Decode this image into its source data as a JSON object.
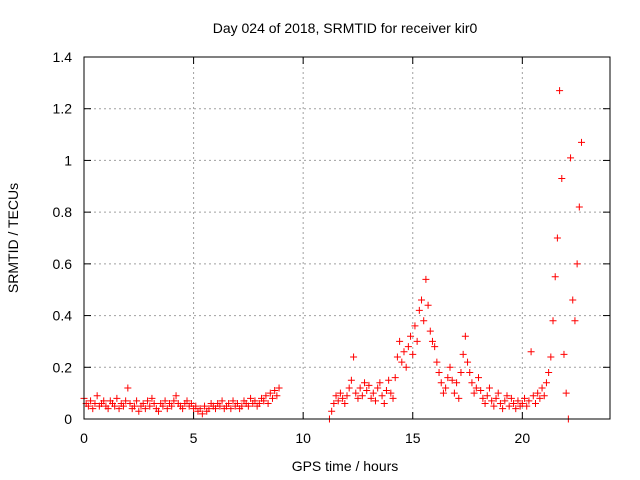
{
  "chart_data": {
    "type": "scatter",
    "title": "Day 024 of 2018, SRMTID for receiver kir0",
    "xlabel": "GPS time / hours",
    "ylabel": "SRMTID / TECUs",
    "xlim": [
      0,
      24
    ],
    "ylim": [
      0,
      1.4
    ],
    "xticks": [
      0,
      5,
      10,
      15,
      20
    ],
    "xtick_labels": [
      "0",
      "5",
      "10",
      "15",
      "20"
    ],
    "yticks": [
      0,
      0.2,
      0.4,
      0.6,
      0.8,
      1.0,
      1.2,
      1.4
    ],
    "ytick_labels": [
      "0",
      "0.2",
      "0.4",
      "0.6",
      "0.8",
      "1",
      "1.2",
      "1.4"
    ],
    "grid": true,
    "marker": "+",
    "color": "#ff0000",
    "series": [
      {
        "name": "kir0",
        "points": [
          [
            0.0,
            0.08
          ],
          [
            0.1,
            0.06
          ],
          [
            0.2,
            0.05
          ],
          [
            0.3,
            0.07
          ],
          [
            0.4,
            0.04
          ],
          [
            0.5,
            0.06
          ],
          [
            0.6,
            0.09
          ],
          [
            0.7,
            0.05
          ],
          [
            0.8,
            0.06
          ],
          [
            0.9,
            0.07
          ],
          [
            1.0,
            0.05
          ],
          [
            1.1,
            0.04
          ],
          [
            1.2,
            0.07
          ],
          [
            1.3,
            0.06
          ],
          [
            1.4,
            0.05
          ],
          [
            1.5,
            0.08
          ],
          [
            1.6,
            0.04
          ],
          [
            1.7,
            0.06
          ],
          [
            1.8,
            0.05
          ],
          [
            1.9,
            0.07
          ],
          [
            2.0,
            0.12
          ],
          [
            2.1,
            0.06
          ],
          [
            2.2,
            0.04
          ],
          [
            2.3,
            0.05
          ],
          [
            2.4,
            0.07
          ],
          [
            2.5,
            0.03
          ],
          [
            2.6,
            0.05
          ],
          [
            2.7,
            0.06
          ],
          [
            2.8,
            0.04
          ],
          [
            2.9,
            0.07
          ],
          [
            3.0,
            0.05
          ],
          [
            3.1,
            0.08
          ],
          [
            3.2,
            0.06
          ],
          [
            3.3,
            0.04
          ],
          [
            3.4,
            0.03
          ],
          [
            3.5,
            0.06
          ],
          [
            3.6,
            0.05
          ],
          [
            3.7,
            0.07
          ],
          [
            3.8,
            0.04
          ],
          [
            3.9,
            0.06
          ],
          [
            4.0,
            0.05
          ],
          [
            4.1,
            0.07
          ],
          [
            4.2,
            0.09
          ],
          [
            4.3,
            0.06
          ],
          [
            4.4,
            0.05
          ],
          [
            4.5,
            0.04
          ],
          [
            4.6,
            0.06
          ],
          [
            4.7,
            0.07
          ],
          [
            4.8,
            0.05
          ],
          [
            4.9,
            0.06
          ],
          [
            5.0,
            0.04
          ],
          [
            5.1,
            0.05
          ],
          [
            5.2,
            0.03
          ],
          [
            5.3,
            0.04
          ],
          [
            5.4,
            0.02
          ],
          [
            5.5,
            0.05
          ],
          [
            5.6,
            0.03
          ],
          [
            5.7,
            0.04
          ],
          [
            5.8,
            0.06
          ],
          [
            5.9,
            0.05
          ],
          [
            6.0,
            0.04
          ],
          [
            6.1,
            0.06
          ],
          [
            6.2,
            0.05
          ],
          [
            6.3,
            0.07
          ],
          [
            6.4,
            0.04
          ],
          [
            6.5,
            0.05
          ],
          [
            6.6,
            0.06
          ],
          [
            6.7,
            0.04
          ],
          [
            6.8,
            0.07
          ],
          [
            6.9,
            0.05
          ],
          [
            7.0,
            0.06
          ],
          [
            7.1,
            0.04
          ],
          [
            7.2,
            0.05
          ],
          [
            7.3,
            0.07
          ],
          [
            7.4,
            0.06
          ],
          [
            7.5,
            0.05
          ],
          [
            7.6,
            0.08
          ],
          [
            7.7,
            0.06
          ],
          [
            7.8,
            0.07
          ],
          [
            7.9,
            0.05
          ],
          [
            8.0,
            0.06
          ],
          [
            8.1,
            0.08
          ],
          [
            8.2,
            0.07
          ],
          [
            8.3,
            0.09
          ],
          [
            8.4,
            0.06
          ],
          [
            8.5,
            0.1
          ],
          [
            8.6,
            0.08
          ],
          [
            8.7,
            0.11
          ],
          [
            8.8,
            0.09
          ],
          [
            8.9,
            0.12
          ],
          [
            11.2,
            0.0
          ],
          [
            11.3,
            0.03
          ],
          [
            11.4,
            0.06
          ],
          [
            11.5,
            0.09
          ],
          [
            11.6,
            0.07
          ],
          [
            11.7,
            0.1
          ],
          [
            11.8,
            0.08
          ],
          [
            11.9,
            0.06
          ],
          [
            12.0,
            0.09
          ],
          [
            12.1,
            0.12
          ],
          [
            12.2,
            0.15
          ],
          [
            12.3,
            0.24
          ],
          [
            12.4,
            0.1
          ],
          [
            12.5,
            0.08
          ],
          [
            12.6,
            0.12
          ],
          [
            12.7,
            0.09
          ],
          [
            12.8,
            0.14
          ],
          [
            12.9,
            0.11
          ],
          [
            13.0,
            0.13
          ],
          [
            13.1,
            0.08
          ],
          [
            13.2,
            0.1
          ],
          [
            13.3,
            0.07
          ],
          [
            13.4,
            0.12
          ],
          [
            13.5,
            0.14
          ],
          [
            13.6,
            0.09
          ],
          [
            13.7,
            0.06
          ],
          [
            13.8,
            0.11
          ],
          [
            13.9,
            0.15
          ],
          [
            14.0,
            0.1
          ],
          [
            14.1,
            0.08
          ],
          [
            14.2,
            0.16
          ],
          [
            14.3,
            0.24
          ],
          [
            14.4,
            0.3
          ],
          [
            14.5,
            0.22
          ],
          [
            14.6,
            0.26
          ],
          [
            14.7,
            0.2
          ],
          [
            14.8,
            0.28
          ],
          [
            14.9,
            0.32
          ],
          [
            15.0,
            0.25
          ],
          [
            15.1,
            0.36
          ],
          [
            15.2,
            0.3
          ],
          [
            15.3,
            0.42
          ],
          [
            15.4,
            0.46
          ],
          [
            15.5,
            0.38
          ],
          [
            15.6,
            0.54
          ],
          [
            15.7,
            0.44
          ],
          [
            15.8,
            0.34
          ],
          [
            15.9,
            0.3
          ],
          [
            16.0,
            0.28
          ],
          [
            16.1,
            0.22
          ],
          [
            16.2,
            0.18
          ],
          [
            16.3,
            0.14
          ],
          [
            16.4,
            0.1
          ],
          [
            16.5,
            0.12
          ],
          [
            16.6,
            0.16
          ],
          [
            16.7,
            0.2
          ],
          [
            16.8,
            0.15
          ],
          [
            16.9,
            0.1
          ],
          [
            17.0,
            0.14
          ],
          [
            17.1,
            0.08
          ],
          [
            17.2,
            0.18
          ],
          [
            17.3,
            0.25
          ],
          [
            17.4,
            0.32
          ],
          [
            17.5,
            0.22
          ],
          [
            17.6,
            0.18
          ],
          [
            17.7,
            0.14
          ],
          [
            17.8,
            0.1
          ],
          [
            17.9,
            0.12
          ],
          [
            18.0,
            0.16
          ],
          [
            18.1,
            0.11
          ],
          [
            18.2,
            0.08
          ],
          [
            18.3,
            0.06
          ],
          [
            18.4,
            0.09
          ],
          [
            18.5,
            0.12
          ],
          [
            18.6,
            0.07
          ],
          [
            18.7,
            0.05
          ],
          [
            18.8,
            0.08
          ],
          [
            18.9,
            0.1
          ],
          [
            19.0,
            0.06
          ],
          [
            19.1,
            0.04
          ],
          [
            19.2,
            0.07
          ],
          [
            19.3,
            0.09
          ],
          [
            19.4,
            0.05
          ],
          [
            19.5,
            0.08
          ],
          [
            19.6,
            0.06
          ],
          [
            19.7,
            0.04
          ],
          [
            19.8,
            0.07
          ],
          [
            19.9,
            0.05
          ],
          [
            20.0,
            0.06
          ],
          [
            20.1,
            0.08
          ],
          [
            20.2,
            0.05
          ],
          [
            20.3,
            0.07
          ],
          [
            20.4,
            0.26
          ],
          [
            20.5,
            0.09
          ],
          [
            20.6,
            0.06
          ],
          [
            20.7,
            0.1
          ],
          [
            20.8,
            0.08
          ],
          [
            20.9,
            0.12
          ],
          [
            21.0,
            0.09
          ],
          [
            21.1,
            0.14
          ],
          [
            21.2,
            0.18
          ],
          [
            21.3,
            0.24
          ],
          [
            21.4,
            0.38
          ],
          [
            21.5,
            0.55
          ],
          [
            21.6,
            0.7
          ],
          [
            21.7,
            1.27
          ],
          [
            21.8,
            0.93
          ],
          [
            21.9,
            0.25
          ],
          [
            22.0,
            0.1
          ],
          [
            22.1,
            0.0
          ],
          [
            22.2,
            1.01
          ],
          [
            22.3,
            0.46
          ],
          [
            22.4,
            0.38
          ],
          [
            22.5,
            0.6
          ],
          [
            22.6,
            0.82
          ],
          [
            22.7,
            1.07
          ]
        ]
      }
    ]
  }
}
